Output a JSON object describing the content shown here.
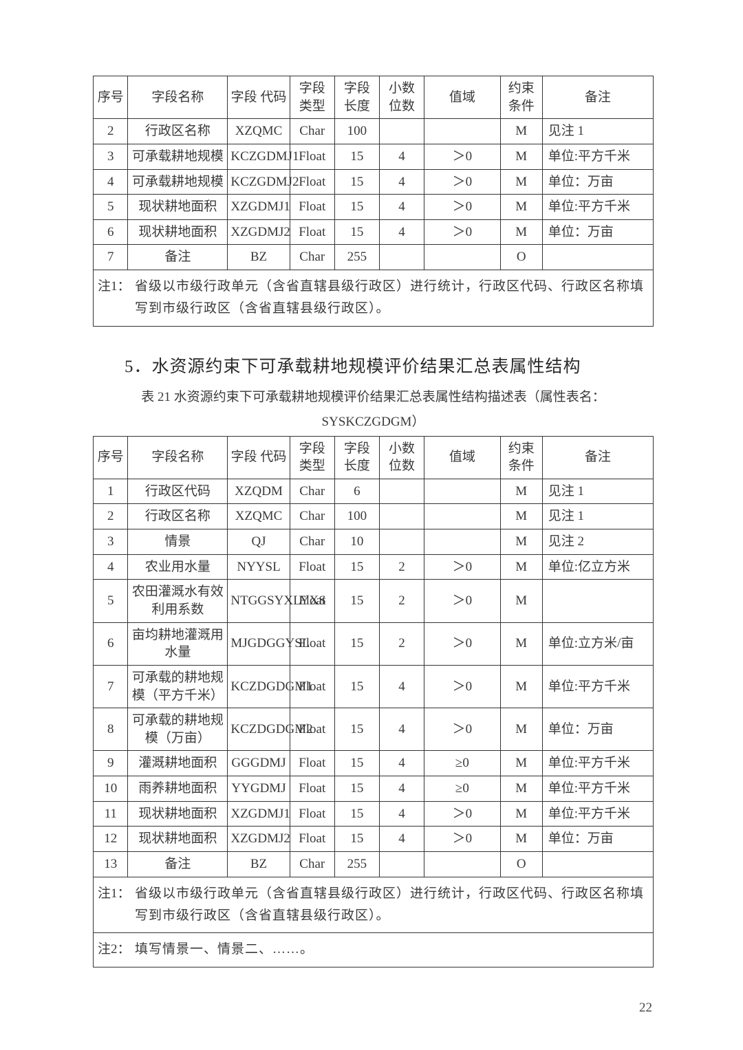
{
  "page_number": "22",
  "table1": {
    "columns": [
      "序号",
      "字段名称",
      "字段\n代码",
      "字段\n类型",
      "字段\n长度",
      "小数\n位数",
      "值域",
      "约束\n条件",
      "备注"
    ],
    "rows": [
      [
        "2",
        "行政区名称",
        "XZQMC",
        "Char",
        "100",
        "",
        "",
        "M",
        "见注 1"
      ],
      [
        "3",
        "可承载耕地规模",
        "KCZGDMJ1",
        "Float",
        "15",
        "4",
        "＞0",
        "M",
        "单位:平方千米"
      ],
      [
        "4",
        "可承载耕地规模",
        "KCZGDMJ2",
        "Float",
        "15",
        "4",
        "＞0",
        "M",
        "单位：万亩"
      ],
      [
        "5",
        "现状耕地面积",
        "XZGDMJ1",
        "Float",
        "15",
        "4",
        "＞0",
        "M",
        "单位:平方千米"
      ],
      [
        "6",
        "现状耕地面积",
        "XZGDMJ2",
        "Float",
        "15",
        "4",
        "＞0",
        "M",
        "单位：万亩"
      ],
      [
        "7",
        "备注",
        "BZ",
        "Char",
        "255",
        "",
        "",
        "O",
        ""
      ]
    ],
    "notes": [
      {
        "label": "注1：",
        "text": "省级以市级行政单元（含省直辖县级行政区）进行统计，行政区代码、行政区名称填写到市级行政区（含省直辖县级行政区）。"
      }
    ]
  },
  "section_title": "5．水资源约束下可承载耕地规模评价结果汇总表属性结构",
  "table2_caption_line1": "表 21 水资源约束下可承载耕地规模评价结果汇总表属性结构描述表（属性表名：",
  "table2_caption_line2": "SYSKCZGDGM）",
  "table2": {
    "columns": [
      "序号",
      "字段名称",
      "字段\n代码",
      "字段\n类型",
      "字段\n长度",
      "小数\n位数",
      "值域",
      "约束\n条件",
      "备注"
    ],
    "rows": [
      [
        "1",
        "行政区代码",
        "XZQDM",
        "Char",
        "6",
        "",
        "",
        "M",
        "见注 1"
      ],
      [
        "2",
        "行政区名称",
        "XZQMC",
        "Char",
        "100",
        "",
        "",
        "M",
        "见注 1"
      ],
      [
        "3",
        "情景",
        "QJ",
        "Char",
        "10",
        "",
        "",
        "M",
        "见注 2"
      ],
      [
        "4",
        "农业用水量",
        "NYYSL",
        "Float",
        "15",
        "2",
        "＞0",
        "M",
        "单位:亿立方米"
      ],
      [
        "5",
        "农田灌溉水有效利用系数",
        "NTGGSYXLYXS",
        "Float",
        "15",
        "2",
        "＞0",
        "M",
        ""
      ],
      [
        "6",
        "亩均耕地灌溉用水量",
        "MJGDGGYSL",
        "Float",
        "15",
        "2",
        "＞0",
        "M",
        "单位:立方米/亩"
      ],
      [
        "7",
        "可承载的耕地规模（平方千米）",
        "KCZDGDGM1",
        "Float",
        "15",
        "4",
        "＞0",
        "M",
        "单位:平方千米"
      ],
      [
        "8",
        "可承载的耕地规模（万亩）",
        "KCZDGDGM2",
        "Float",
        "15",
        "4",
        "＞0",
        "M",
        "单位：万亩"
      ],
      [
        "9",
        "灌溉耕地面积",
        "GGGDMJ",
        "Float",
        "15",
        "4",
        "≥0",
        "M",
        "单位:平方千米"
      ],
      [
        "10",
        "雨养耕地面积",
        "YYGDMJ",
        "Float",
        "15",
        "4",
        "≥0",
        "M",
        "单位:平方千米"
      ],
      [
        "11",
        "现状耕地面积",
        "XZGDMJ1",
        "Float",
        "15",
        "4",
        "＞0",
        "M",
        "单位:平方千米"
      ],
      [
        "12",
        "现状耕地面积",
        "XZGDMJ2",
        "Float",
        "15",
        "4",
        "＞0",
        "M",
        "单位：万亩"
      ],
      [
        "13",
        "备注",
        "BZ",
        "Char",
        "255",
        "",
        "",
        "O",
        ""
      ]
    ],
    "notes": [
      {
        "label": "注1：",
        "text": "省级以市级行政单元（含省直辖县级行政区）进行统计，行政区代码、行政区名称填写到市级行政区（含省直辖县级行政区）。"
      },
      {
        "label": "注2：",
        "text": "填写情景一、情景二、……。"
      }
    ]
  }
}
